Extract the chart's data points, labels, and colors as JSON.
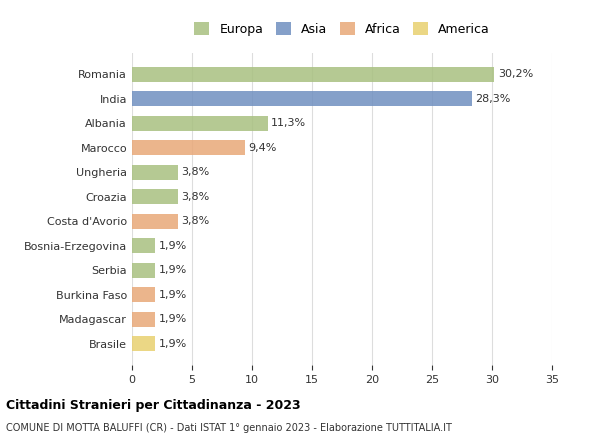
{
  "categories": [
    "Romania",
    "India",
    "Albania",
    "Marocco",
    "Ungheria",
    "Croazia",
    "Costa d'Avorio",
    "Bosnia-Erzegovina",
    "Serbia",
    "Burkina Faso",
    "Madagascar",
    "Brasile"
  ],
  "values": [
    30.2,
    28.3,
    11.3,
    9.4,
    3.8,
    3.8,
    3.8,
    1.9,
    1.9,
    1.9,
    1.9,
    1.9
  ],
  "labels": [
    "30,2%",
    "28,3%",
    "11,3%",
    "9,4%",
    "3,8%",
    "3,8%",
    "3,8%",
    "1,9%",
    "1,9%",
    "1,9%",
    "1,9%",
    "1,9%"
  ],
  "continents": [
    "Europa",
    "Asia",
    "Europa",
    "Africa",
    "Europa",
    "Europa",
    "Africa",
    "Europa",
    "Europa",
    "Africa",
    "Africa",
    "America"
  ],
  "colors": {
    "Europa": "#a8c080",
    "Asia": "#7090c0",
    "Africa": "#e8a878",
    "America": "#e8d070"
  },
  "legend_order": [
    "Europa",
    "Asia",
    "Africa",
    "America"
  ],
  "title_main": "Cittadini Stranieri per Cittadinanza - 2023",
  "title_sub": "COMUNE DI MOTTA BALUFFI (CR) - Dati ISTAT 1° gennaio 2023 - Elaborazione TUTTITALIA.IT",
  "xlim": [
    0,
    35
  ],
  "xticks": [
    0,
    5,
    10,
    15,
    20,
    25,
    30,
    35
  ],
  "background_color": "#ffffff",
  "grid_color": "#dddddd"
}
